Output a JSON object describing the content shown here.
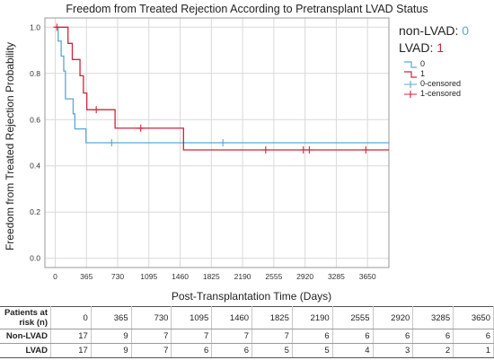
{
  "chart_data": {
    "type": "line",
    "title": "Freedom from Treated Rejection According to Pretransplant LVAD Status",
    "xlabel": "Post-Transplantation Time (Days)",
    "ylabel": "Freedom from Treated Rejection Probability",
    "xlim": [
      -120,
      3900
    ],
    "ylim": [
      -0.04,
      1.04
    ],
    "x_ticks": [
      "0",
      "365",
      "730",
      "1095",
      "1460",
      "1825",
      "2190",
      "2555",
      "2920",
      "3285",
      "3650"
    ],
    "y_ticks": [
      "0.0",
      "0.2",
      "0.4",
      "0.6",
      "0.8",
      "1.0"
    ],
    "grid": true,
    "legend_position": "right",
    "series": [
      {
        "name": "0",
        "color": "#5aa9d6",
        "steps": [
          [
            0,
            1.0
          ],
          [
            35,
            0.94
          ],
          [
            70,
            0.875
          ],
          [
            100,
            0.81
          ],
          [
            120,
            0.69
          ],
          [
            210,
            0.625
          ],
          [
            230,
            0.56
          ],
          [
            360,
            0.5
          ],
          [
            3900,
            0.5
          ]
        ],
        "censored": [
          [
            660,
            0.5
          ],
          [
            1960,
            0.5
          ]
        ]
      },
      {
        "name": "1",
        "color": "#d0243b",
        "steps": [
          [
            0,
            1.0
          ],
          [
            150,
            0.93
          ],
          [
            200,
            0.86
          ],
          [
            290,
            0.79
          ],
          [
            330,
            0.715
          ],
          [
            370,
            0.643
          ],
          [
            700,
            0.563
          ],
          [
            1500,
            0.469
          ],
          [
            3900,
            0.469
          ]
        ],
        "censored": [
          [
            20,
            1.0
          ],
          [
            480,
            0.643
          ],
          [
            1000,
            0.563
          ],
          [
            2460,
            0.469
          ],
          [
            2900,
            0.469
          ],
          [
            2970,
            0.469
          ],
          [
            3630,
            0.469
          ]
        ]
      }
    ]
  },
  "annotation": {
    "nonlvad_label": "non-LVAD: ",
    "nonlvad_value": "0",
    "lvad_label": "LVAD: ",
    "lvad_value": "1"
  },
  "legend": [
    {
      "label": "0",
      "kind": "step",
      "color": "#5aa9d6"
    },
    {
      "label": "1",
      "kind": "step",
      "color": "#d0243b"
    },
    {
      "label": "0-censored",
      "kind": "cross",
      "color": "#5aa9d6"
    },
    {
      "label": "1-censored",
      "kind": "cross",
      "color": "#d0243b"
    }
  ],
  "risk_table": {
    "header": "Patients at risk (n)",
    "days": [
      "0",
      "365",
      "730",
      "1095",
      "1460",
      "1825",
      "2190",
      "2555",
      "2920",
      "3285",
      "3650"
    ],
    "rows": [
      {
        "label": "Non-LVAD",
        "values": [
          "17",
          "9",
          "7",
          "7",
          "7",
          "7",
          "6",
          "6",
          "6",
          "6",
          "6"
        ]
      },
      {
        "label": "LVAD",
        "values": [
          "17",
          "9",
          "7",
          "6",
          "6",
          "5",
          "5",
          "4",
          "3",
          "2",
          "1"
        ]
      }
    ]
  }
}
